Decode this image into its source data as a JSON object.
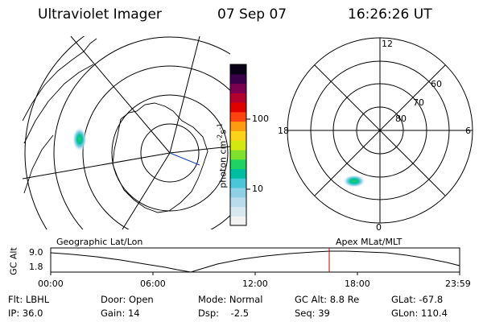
{
  "header": {
    "title": "Ultraviolet Imager",
    "date": "07 Sep 07",
    "time": "16:26:26 UT"
  },
  "left_map": {
    "label": "Geographic Lat/Lon"
  },
  "right_map": {
    "label": "Apex MLat/MLT",
    "mlt_labels": {
      "top": "12",
      "left": "18",
      "right": "6",
      "bottom": "0"
    },
    "lat_labels": [
      "60",
      "70",
      "80"
    ]
  },
  "colorbar": {
    "unit_label": "photon cm",
    "unit_sup1": "-2",
    "unit_mid": "s",
    "unit_sup2": "-1",
    "tick_labels": [
      "100",
      "10"
    ],
    "colors": [
      "#f2f2f2",
      "#d8e8f0",
      "#b8dcec",
      "#8fd0e6",
      "#49c6d8",
      "#00bfa0",
      "#1fd262",
      "#7de02a",
      "#d2e810",
      "#ffd21a",
      "#ff9b10",
      "#ff4410",
      "#e00000",
      "#b4002e",
      "#7c0050",
      "#3a004a",
      "#0a0018"
    ]
  },
  "altitude_plot": {
    "ylabel": "GC Alt",
    "y_ticks": [
      "9.0",
      "1.8"
    ],
    "x_ticks": [
      "00:00",
      "06:00",
      "12:00",
      "18:00",
      "23:59"
    ],
    "current_time_hours": 16.44
  },
  "status": {
    "filter": "Flt: LBHL",
    "ip": "IP: 36.0",
    "door": "Door: Open",
    "gain": "Gain: 14",
    "mode": "Mode: Normal",
    "dsp": "Dsp:    -2.5",
    "gc_alt": "GC Alt: 8.8 Re",
    "seq": "Seq: 39",
    "glat": "GLat: -67.8",
    "glon": "GLon: 110.4"
  }
}
